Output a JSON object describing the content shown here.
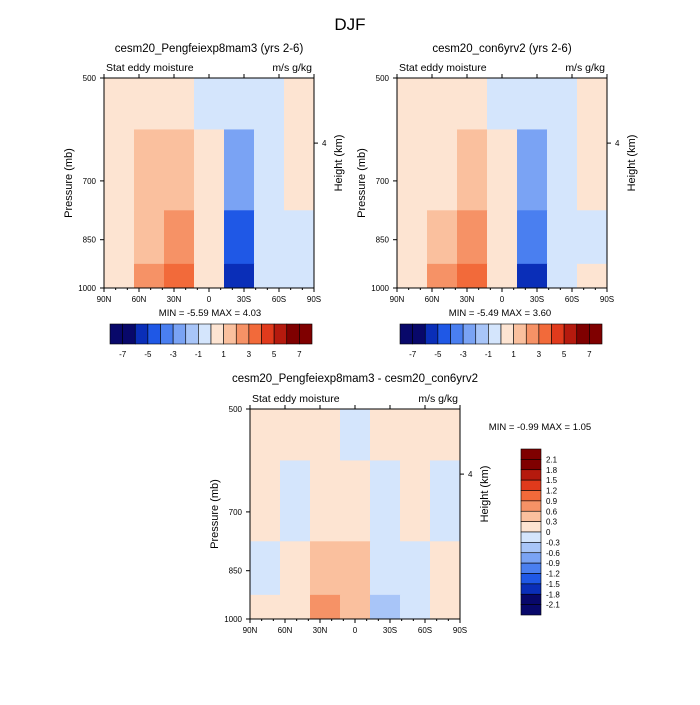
{
  "page_title": "DJF",
  "colors": {
    "neg": [
      "#08086a",
      "#0a2eb8",
      "#1f58e6",
      "#4a7ff0",
      "#7aa3f4",
      "#a8c5f8",
      "#d4e5fc"
    ],
    "pos": [
      "#fde4d2",
      "#fac09e",
      "#f69266",
      "#f26a3a",
      "#e03a1c",
      "#b51a0e",
      "#7f0000"
    ],
    "frame": "#000000"
  },
  "panels": [
    {
      "title": "cesm20_Pengfeiexp8mam3 (yrs 2-6)",
      "left_label": "Stat eddy moisture",
      "right_label": "m/s g/kg",
      "y_axis_label": "Pressure (mb)",
      "y2_axis_label": "Height (km)",
      "y_ticks": [
        "500",
        "700",
        "850",
        "1000"
      ],
      "y2_ticks": [
        "4"
      ],
      "x_ticks": [
        "90N",
        "60N",
        "30N",
        "0",
        "30S",
        "60S",
        "90S"
      ],
      "minmax": "MIN =  -5.59  MAX =   4.03",
      "colorbar_labels": [
        "-7",
        "-5",
        "-3",
        "-1",
        "1",
        "3",
        "5",
        "7"
      ]
    },
    {
      "title": "cesm20_con6yrv2 (yrs 2-6)",
      "left_label": "Stat eddy moisture",
      "right_label": "m/s g/kg",
      "y_axis_label": "Pressure (mb)",
      "y2_axis_label": "Height (km)",
      "y_ticks": [
        "500",
        "700",
        "850",
        "1000"
      ],
      "y2_ticks": [
        "4"
      ],
      "x_ticks": [
        "90N",
        "60N",
        "30N",
        "0",
        "30S",
        "60S",
        "90S"
      ],
      "minmax": "MIN =  -5.49  MAX =   3.60",
      "colorbar_labels": [
        "-7",
        "-5",
        "-3",
        "-1",
        "1",
        "3",
        "5",
        "7"
      ]
    },
    {
      "title": "cesm20_Pengfeiexp8mam3 - cesm20_con6yrv2",
      "left_label": "Stat eddy moisture",
      "right_label": "m/s g/kg",
      "y_axis_label": "Pressure (mb)",
      "y2_axis_label": "Height (km)",
      "y_ticks": [
        "500",
        "700",
        "850",
        "1000"
      ],
      "y2_ticks": [
        "4"
      ],
      "x_ticks": [
        "90N",
        "60N",
        "30N",
        "0",
        "30S",
        "60S",
        "90S"
      ],
      "minmax": "MIN =  -0.99  MAX =   1.05",
      "colorbar_labels": [
        "2.1",
        "1.8",
        "1.5",
        "1.2",
        "0.9",
        "0.6",
        "0.3",
        "0",
        "-0.3",
        "-0.6",
        "-0.9",
        "-1.2",
        "-1.5",
        "-1.8",
        "-2.1"
      ]
    }
  ],
  "chart_data": [
    {
      "type": "heatmap",
      "title": "cesm20_Pengfeiexp8mam3 (yrs 2-6)",
      "subtitle_left": "Stat eddy moisture",
      "subtitle_right": "m/s g/kg",
      "xlabel": "",
      "ylabel": "Pressure (mb)",
      "y2label": "Height (km)",
      "x_ticks": [
        "90N",
        "60N",
        "30N",
        "0",
        "30S",
        "60S",
        "90S"
      ],
      "y_ticks": [
        500,
        700,
        850,
        1000
      ],
      "x": [
        90,
        60,
        30,
        0,
        -30,
        -60,
        -90
      ],
      "y": [
        500,
        700,
        850,
        1000
      ],
      "z": [
        [
          0.3,
          0.4,
          0.3,
          -0.3,
          -0.6,
          -0.3,
          0.2
        ],
        [
          0.5,
          1.0,
          1.2,
          0.2,
          -2.5,
          -0.4,
          0.2
        ],
        [
          0.6,
          1.6,
          2.2,
          0.4,
          -4.0,
          -0.5,
          -0.3
        ],
        [
          0.4,
          2.6,
          3.6,
          0.3,
          -5.3,
          -0.4,
          -0.4
        ]
      ],
      "min": -5.59,
      "max": 4.03,
      "colorbar_levels": [
        -7,
        -6,
        -5,
        -4,
        -3,
        -2,
        -1,
        0,
        1,
        2,
        3,
        4,
        5,
        6,
        7
      ]
    },
    {
      "type": "heatmap",
      "title": "cesm20_con6yrv2 (yrs 2-6)",
      "subtitle_left": "Stat eddy moisture",
      "subtitle_right": "m/s g/kg",
      "xlabel": "",
      "ylabel": "Pressure (mb)",
      "y2label": "Height (km)",
      "x_ticks": [
        "90N",
        "60N",
        "30N",
        "0",
        "30S",
        "60S",
        "90S"
      ],
      "y_ticks": [
        500,
        700,
        850,
        1000
      ],
      "x": [
        90,
        60,
        30,
        0,
        -30,
        -60,
        -90
      ],
      "y": [
        500,
        700,
        850,
        1000
      ],
      "z": [
        [
          0.2,
          0.3,
          0.3,
          -0.3,
          -0.6,
          -0.3,
          0.4
        ],
        [
          0.4,
          0.8,
          1.1,
          0.2,
          -2.4,
          -0.4,
          0.4
        ],
        [
          0.5,
          1.4,
          2.0,
          0.3,
          -3.8,
          -0.5,
          -0.2
        ],
        [
          0.4,
          2.2,
          3.2,
          0.3,
          -5.2,
          -0.4,
          0.5
        ]
      ],
      "min": -5.49,
      "max": 3.6,
      "colorbar_levels": [
        -7,
        -6,
        -5,
        -4,
        -3,
        -2,
        -1,
        0,
        1,
        2,
        3,
        4,
        5,
        6,
        7
      ]
    },
    {
      "type": "heatmap",
      "title": "cesm20_Pengfeiexp8mam3 - cesm20_con6yrv2",
      "subtitle_left": "Stat eddy moisture",
      "subtitle_right": "m/s g/kg",
      "xlabel": "",
      "ylabel": "Pressure (mb)",
      "y2label": "Height (km)",
      "x_ticks": [
        "90N",
        "60N",
        "30N",
        "0",
        "30S",
        "60S",
        "90S"
      ],
      "y_ticks": [
        500,
        700,
        850,
        1000
      ],
      "x": [
        90,
        60,
        30,
        0,
        -30,
        -60,
        -90
      ],
      "y": [
        500,
        700,
        850,
        1000
      ],
      "z": [
        [
          0.1,
          0.2,
          0.1,
          -0.1,
          0.2,
          0.1,
          0.1
        ],
        [
          0.1,
          -0.1,
          0.2,
          0.1,
          -0.2,
          0.1,
          -0.1
        ],
        [
          -0.1,
          0.1,
          0.4,
          0.5,
          -0.2,
          -0.1,
          0.1
        ],
        [
          0.1,
          0.2,
          0.6,
          0.3,
          -0.3,
          -0.1,
          0.1
        ]
      ],
      "min": -0.99,
      "max": 1.05,
      "colorbar_levels": [
        -2.1,
        -1.8,
        -1.5,
        -1.2,
        -0.9,
        -0.6,
        -0.3,
        0,
        0.3,
        0.6,
        0.9,
        1.2,
        1.5,
        1.8,
        2.1
      ]
    }
  ]
}
